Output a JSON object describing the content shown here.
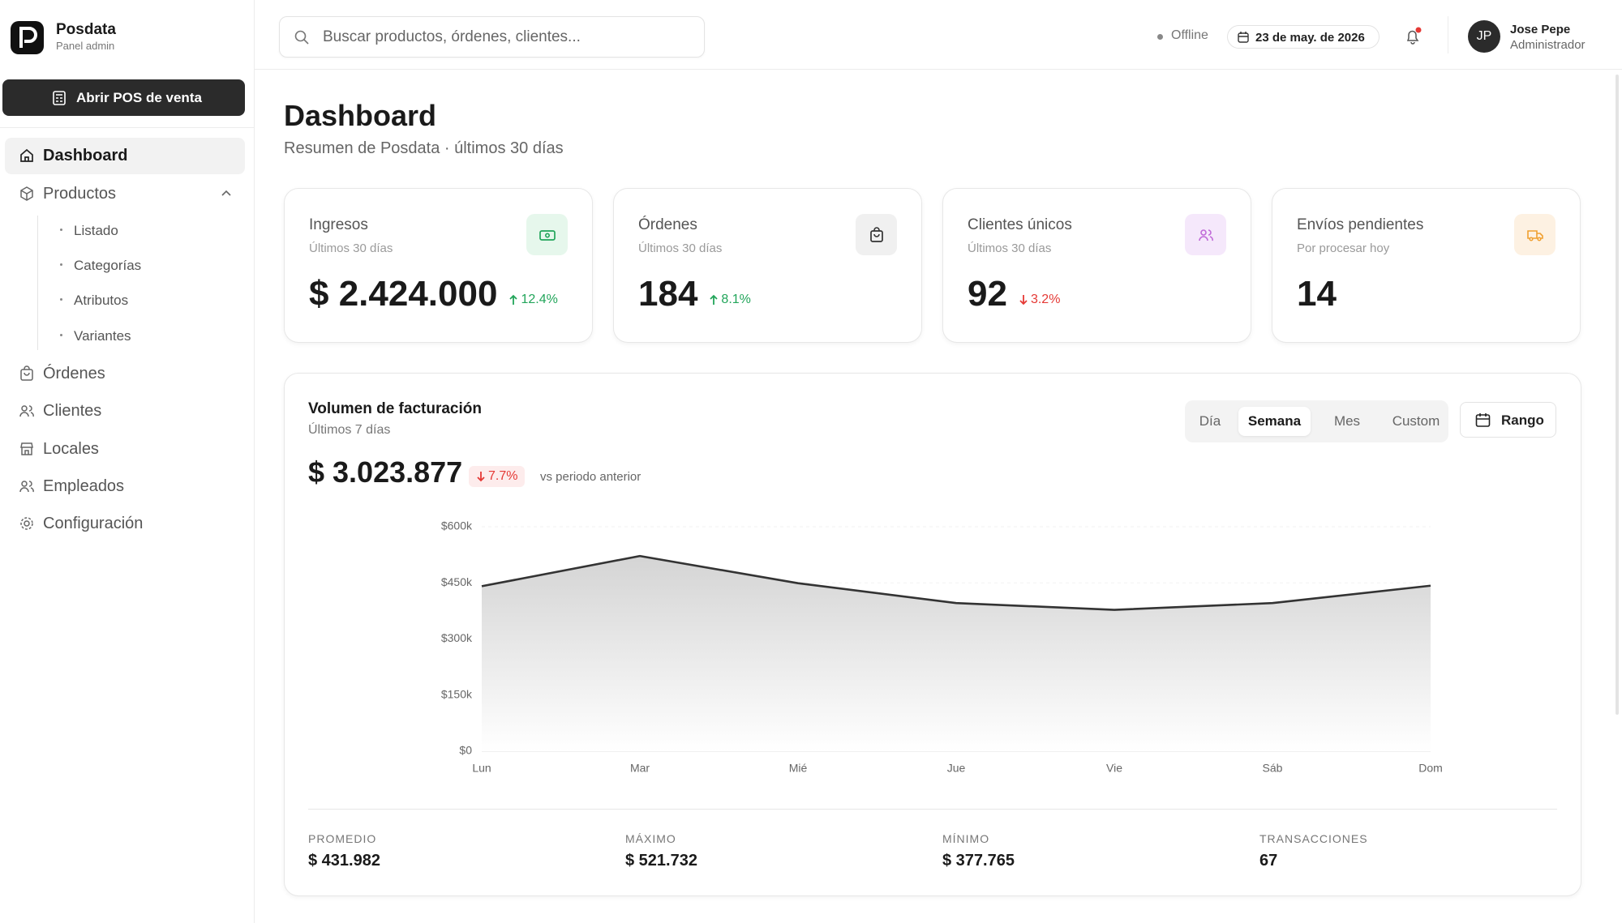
{
  "brand": {
    "name": "Posdata",
    "subtitle": "Panel admin"
  },
  "header": {
    "search_placeholder": "Buscar productos, órdenes, clientes...",
    "status": "Offline",
    "date": "23 de may. de 2026",
    "user": {
      "initials": "JP",
      "name": "Jose Pepe",
      "role": "Administrador"
    }
  },
  "sidebar": {
    "cta": "Abrir POS de venta",
    "items": [
      "Dashboard",
      "Productos",
      "Órdenes",
      "Clientes",
      "Locales",
      "Empleados",
      "Configuración"
    ],
    "product_subitems": [
      "Listado",
      "Categorías",
      "Atributos",
      "Variantes"
    ]
  },
  "page": {
    "title": "Dashboard",
    "subtitle": "Resumen de Posdata · últimos 30 días"
  },
  "kpis": [
    {
      "label": "Ingresos",
      "sublabel": "Últimos 30 días",
      "value": "$ 2.424.000",
      "change": "12.4%",
      "trend": "up"
    },
    {
      "label": "Órdenes",
      "sublabel": "Últimos 30 días",
      "value": "184",
      "change": "8.1%",
      "trend": "up"
    },
    {
      "label": "Clientes únicos",
      "sublabel": "Últimos 30 días",
      "value": "92",
      "change": "3.2%",
      "trend": "down"
    },
    {
      "label": "Envíos pendientes",
      "sublabel": "Por procesar hoy",
      "value": "14"
    }
  ],
  "billing": {
    "total": "$ 3.023.877",
    "change": "7.7%",
    "trend": "down",
    "comparison": "vs periodo anterior",
    "periods": [
      "Día",
      "Semana",
      "Mes",
      "Custom"
    ],
    "active_period": 1,
    "range_button": "Rango",
    "stats": [
      {
        "label": "PROMEDIO",
        "value": "$ 431.982"
      },
      {
        "label": "MÁXIMO",
        "value": "$ 521.732"
      },
      {
        "label": "MÍNIMO",
        "value": "$ 377.765"
      },
      {
        "label": "TRANSACCIONES",
        "value": "67"
      }
    ]
  },
  "chart_data": {
    "type": "area",
    "title": "Volumen de facturación",
    "subtitle": "Últimos 7 días",
    "categories": [
      "Lun",
      "Mar",
      "Mié",
      "Jue",
      "Vie",
      "Sáb",
      "Dom"
    ],
    "values": [
      441000,
      521732,
      449000,
      396000,
      377765,
      396000,
      442380
    ],
    "color": "#333333",
    "ylim": [
      0,
      600000
    ],
    "yticks": [
      {
        "value": 0,
        "label": "$0"
      },
      {
        "value": 150000,
        "label": "$150k"
      },
      {
        "value": 300000,
        "label": "$300k"
      },
      {
        "value": 450000,
        "label": "$450k"
      },
      {
        "value": 600000,
        "label": "$600k"
      }
    ],
    "grid": true
  }
}
